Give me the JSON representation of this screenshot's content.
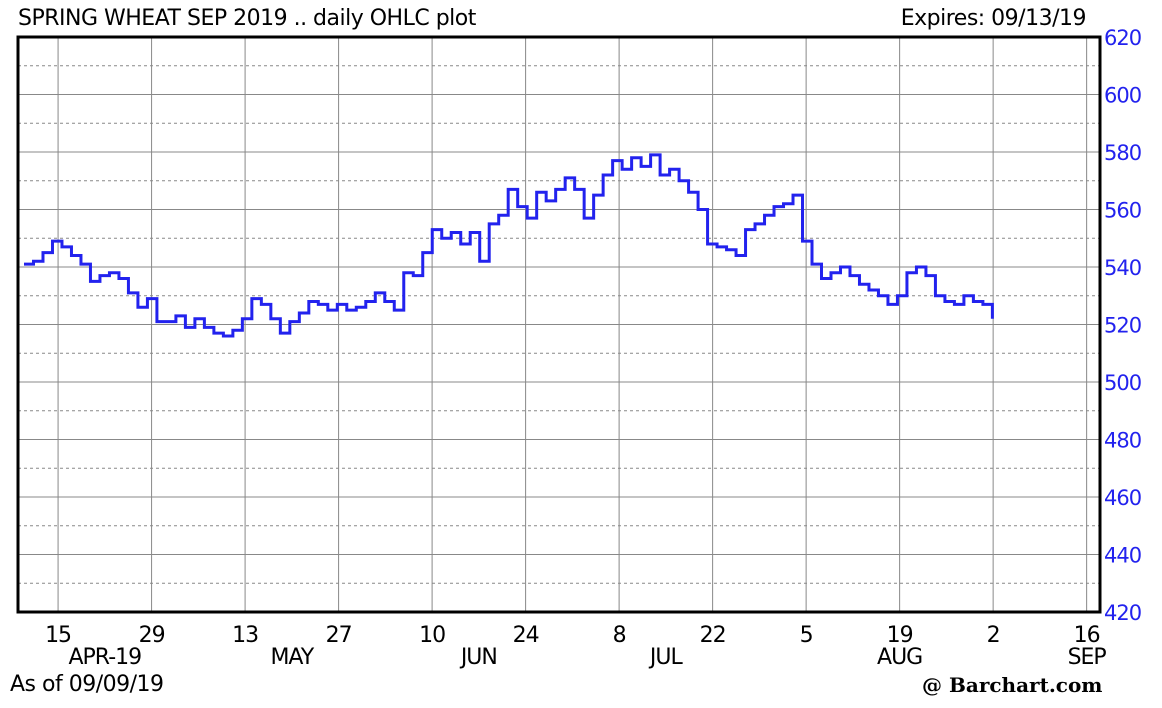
{
  "header": {
    "title": "SPRING WHEAT SEP 2019 .. daily OHLC plot",
    "expires": "Expires: 09/13/19"
  },
  "footer": {
    "as_of": "As of 09/09/19",
    "brand": "@ Barchart.com"
  },
  "colors": {
    "series": "#2222ee",
    "axis_labels": "#2222ee",
    "grid": "#888888",
    "frame": "#000000"
  },
  "chart_data": {
    "type": "ohlc",
    "title": "SPRING WHEAT SEP 2019 .. daily OHLC plot",
    "ylim": [
      420,
      620
    ],
    "y_ticks": [
      420,
      440,
      460,
      480,
      500,
      520,
      540,
      560,
      580,
      600,
      620
    ],
    "y_minor_gridlines": true,
    "grid": true,
    "x_start": "2019-04-09",
    "x_end": "2019-09-18",
    "x_tick_labels": [
      {
        "date": "2019-04-15",
        "label": "15"
      },
      {
        "date": "2019-04-29",
        "label": "29"
      },
      {
        "date": "2019-05-13",
        "label": "13"
      },
      {
        "date": "2019-05-27",
        "label": "27"
      },
      {
        "date": "2019-06-10",
        "label": "10"
      },
      {
        "date": "2019-06-24",
        "label": "24"
      },
      {
        "date": "2019-07-08",
        "label": "8"
      },
      {
        "date": "2019-07-22",
        "label": "22"
      },
      {
        "date": "2019-08-05",
        "label": "5"
      },
      {
        "date": "2019-08-19",
        "label": "19"
      },
      {
        "date": "2019-09-02",
        "label": "2"
      },
      {
        "date": "2019-09-16",
        "label": "16"
      }
    ],
    "month_labels": [
      {
        "date": "2019-04-22",
        "label": "APR-19"
      },
      {
        "date": "2019-05-20",
        "label": "MAY"
      },
      {
        "date": "2019-06-17",
        "label": "JUN"
      },
      {
        "date": "2019-07-15",
        "label": "JUL"
      },
      {
        "date": "2019-08-19",
        "label": "AUG"
      },
      {
        "date": "2019-09-16",
        "label": "SEP"
      }
    ],
    "close_by_date": [
      [
        "2019-04-10",
        541
      ],
      [
        "2019-04-11",
        542
      ],
      [
        "2019-04-12",
        545
      ],
      [
        "2019-04-15",
        549
      ],
      [
        "2019-04-16",
        547
      ],
      [
        "2019-04-17",
        544
      ],
      [
        "2019-04-18",
        541
      ],
      [
        "2019-04-19",
        535
      ],
      [
        "2019-04-22",
        537
      ],
      [
        "2019-04-23",
        538
      ],
      [
        "2019-04-24",
        536
      ],
      [
        "2019-04-25",
        531
      ],
      [
        "2019-04-26",
        526
      ],
      [
        "2019-04-29",
        529
      ],
      [
        "2019-04-30",
        521
      ],
      [
        "2019-05-01",
        521
      ],
      [
        "2019-05-02",
        523
      ],
      [
        "2019-05-03",
        519
      ],
      [
        "2019-05-06",
        522
      ],
      [
        "2019-05-07",
        519
      ],
      [
        "2019-05-08",
        517
      ],
      [
        "2019-05-09",
        516
      ],
      [
        "2019-05-10",
        518
      ],
      [
        "2019-05-13",
        522
      ],
      [
        "2019-05-14",
        529
      ],
      [
        "2019-05-15",
        527
      ],
      [
        "2019-05-16",
        522
      ],
      [
        "2019-05-17",
        517
      ],
      [
        "2019-05-20",
        521
      ],
      [
        "2019-05-21",
        524
      ],
      [
        "2019-05-22",
        528
      ],
      [
        "2019-05-23",
        527
      ],
      [
        "2019-05-24",
        525
      ],
      [
        "2019-05-27",
        527
      ],
      [
        "2019-05-28",
        525
      ],
      [
        "2019-05-29",
        526
      ],
      [
        "2019-05-30",
        528
      ],
      [
        "2019-05-31",
        531
      ],
      [
        "2019-06-03",
        528
      ],
      [
        "2019-06-04",
        525
      ],
      [
        "2019-06-05",
        538
      ],
      [
        "2019-06-06",
        537
      ],
      [
        "2019-06-07",
        545
      ],
      [
        "2019-06-10",
        553
      ],
      [
        "2019-06-11",
        550
      ],
      [
        "2019-06-12",
        552
      ],
      [
        "2019-06-13",
        548
      ],
      [
        "2019-06-14",
        552
      ],
      [
        "2019-06-17",
        542
      ],
      [
        "2019-06-18",
        555
      ],
      [
        "2019-06-19",
        558
      ],
      [
        "2019-06-20",
        567
      ],
      [
        "2019-06-21",
        561
      ],
      [
        "2019-06-24",
        557
      ],
      [
        "2019-06-25",
        566
      ],
      [
        "2019-06-26",
        563
      ],
      [
        "2019-06-27",
        567
      ],
      [
        "2019-06-28",
        571
      ],
      [
        "2019-07-01",
        567
      ],
      [
        "2019-07-02",
        557
      ],
      [
        "2019-07-03",
        565
      ],
      [
        "2019-07-04",
        572
      ],
      [
        "2019-07-05",
        577
      ],
      [
        "2019-07-08",
        574
      ],
      [
        "2019-07-09",
        578
      ],
      [
        "2019-07-10",
        575
      ],
      [
        "2019-07-11",
        579
      ],
      [
        "2019-07-12",
        572
      ],
      [
        "2019-07-15",
        574
      ],
      [
        "2019-07-16",
        570
      ],
      [
        "2019-07-17",
        566
      ],
      [
        "2019-07-18",
        560
      ],
      [
        "2019-07-19",
        548
      ],
      [
        "2019-07-22",
        547
      ],
      [
        "2019-07-23",
        546
      ],
      [
        "2019-07-24",
        544
      ],
      [
        "2019-07-25",
        553
      ],
      [
        "2019-07-26",
        555
      ],
      [
        "2019-07-29",
        558
      ],
      [
        "2019-07-30",
        561
      ],
      [
        "2019-07-31",
        562
      ],
      [
        "2019-08-01",
        565
      ],
      [
        "2019-08-02",
        549
      ],
      [
        "2019-08-05",
        541
      ],
      [
        "2019-08-06",
        536
      ],
      [
        "2019-08-07",
        538
      ],
      [
        "2019-08-08",
        540
      ],
      [
        "2019-08-09",
        537
      ],
      [
        "2019-08-12",
        534
      ],
      [
        "2019-08-13",
        532
      ],
      [
        "2019-08-14",
        530
      ],
      [
        "2019-08-15",
        527
      ],
      [
        "2019-08-16",
        530
      ],
      [
        "2019-08-19",
        538
      ],
      [
        "2019-08-20",
        540
      ],
      [
        "2019-08-21",
        537
      ],
      [
        "2019-08-22",
        530
      ],
      [
        "2019-08-23",
        528
      ],
      [
        "2019-08-26",
        527
      ],
      [
        "2019-08-27",
        530
      ],
      [
        "2019-08-28",
        528
      ],
      [
        "2019-08-29",
        527
      ],
      [
        "2019-08-30",
        522
      ]
    ],
    "note": "x positions are mapped as a compressed trading-day index; series rendered as connected OHLC-style steps"
  }
}
